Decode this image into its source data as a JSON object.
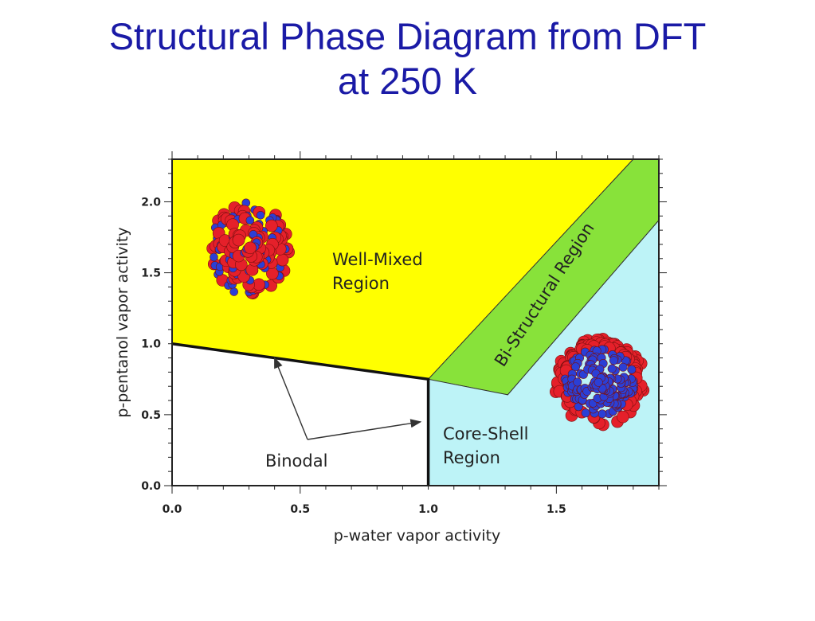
{
  "slide": {
    "title_line1": "Structural Phase Diagram from DFT",
    "title_line2": "at 250 K"
  },
  "chart_data": {
    "type": "area",
    "xlabel": "p-water vapor activity",
    "ylabel": "p-pentanol vapor activity",
    "xlim": [
      0.0,
      1.9
    ],
    "ylim": [
      0.0,
      2.3
    ],
    "x_ticks": [
      "0.0",
      "0.5",
      "1.0",
      "1.5"
    ],
    "y_ticks": [
      "0.0",
      "0.5",
      "1.0",
      "1.5",
      "2.0"
    ],
    "grid": false,
    "regions": [
      {
        "label_lines": [
          "Well-Mixed",
          "Region"
        ],
        "color": "#ffff00",
        "polygon": [
          [
            0.0,
            1.0
          ],
          [
            1.0,
            0.75
          ],
          [
            1.8,
            2.3
          ],
          [
            0.0,
            2.3
          ]
        ]
      },
      {
        "label_lines": [
          "Bi-Structural Region"
        ],
        "color": "#88e23a",
        "polygon": [
          [
            1.0,
            0.75
          ],
          [
            1.31,
            0.64
          ],
          [
            1.9,
            1.87
          ],
          [
            1.9,
            2.3
          ],
          [
            1.8,
            2.3
          ]
        ]
      },
      {
        "label_lines": [
          "Core-Shell",
          "Region"
        ],
        "color": "#bdf3f7",
        "polygon": [
          [
            1.0,
            0.75
          ],
          [
            1.31,
            0.64
          ],
          [
            1.9,
            1.87
          ],
          [
            1.9,
            0.0
          ],
          [
            1.0,
            0.0
          ]
        ]
      }
    ],
    "binodal": {
      "label": "Binodal",
      "line": [
        [
          0.0,
          1.0
        ],
        [
          1.0,
          0.75
        ],
        [
          1.0,
          0.0
        ]
      ],
      "arrow_targets": [
        [
          0.4,
          0.9
        ],
        [
          0.97,
          0.45
        ]
      ]
    },
    "cluster_images": [
      {
        "name": "well-mixed-cluster",
        "x": 0.3,
        "y": 1.67
      },
      {
        "name": "core-shell-cluster",
        "x": 1.67,
        "y": 0.73
      }
    ]
  }
}
